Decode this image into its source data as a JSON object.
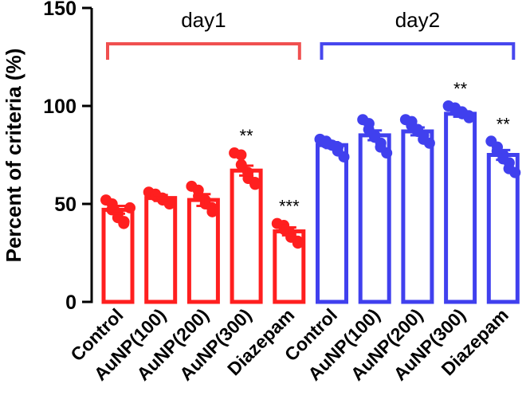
{
  "chart_data": {
    "type": "bar",
    "title": "",
    "xlabel": "",
    "ylabel": "Percent of criteria (%)",
    "ylim": [
      0,
      150
    ],
    "yticks": [
      0,
      50,
      100,
      150
    ],
    "grid": false,
    "categories": [
      "Control",
      "AuNP(100)",
      "AuNP(200)",
      "AuNP(300)",
      "Diazepam",
      "Control",
      "AuNP(100)",
      "AuNP(200)",
      "AuNP(300)",
      "Diazepam"
    ],
    "groups": [
      {
        "name": "day1",
        "color": "#ff1f1f",
        "bracket_color": "#f05050",
        "category_indices": [
          0,
          1,
          2,
          3,
          4
        ]
      },
      {
        "name": "day2",
        "color": "#4040ee",
        "bracket_color": "#4747ee",
        "category_indices": [
          5,
          6,
          7,
          8,
          9
        ]
      }
    ],
    "values": [
      47,
      53,
      52,
      67,
      36,
      80,
      85,
      87,
      96,
      75
    ],
    "errors": [
      2,
      1.5,
      3,
      2.5,
      2,
      1.5,
      2.5,
      2,
      1.5,
      2.5
    ],
    "significance": [
      "",
      "",
      "",
      "**",
      "***",
      "",
      "",
      "",
      "**",
      "**"
    ],
    "points": [
      [
        52,
        50,
        47,
        45,
        43,
        41,
        40,
        48
      ],
      [
        56,
        55,
        54,
        53,
        52,
        51,
        50
      ],
      [
        59,
        57,
        54,
        52,
        50,
        48,
        46
      ],
      [
        76,
        75,
        70,
        66,
        63,
        61,
        60
      ],
      [
        40,
        39,
        37,
        35,
        33,
        31,
        30
      ],
      [
        83,
        82,
        81,
        80,
        80,
        79,
        77,
        74
      ],
      [
        93,
        91,
        88,
        85,
        84,
        81,
        79,
        76
      ],
      [
        93,
        92,
        90,
        88,
        87,
        85,
        83,
        81
      ],
      [
        100,
        99,
        98,
        97,
        96,
        95,
        94
      ],
      [
        82,
        79,
        77,
        75,
        73,
        71,
        68,
        66
      ]
    ]
  }
}
